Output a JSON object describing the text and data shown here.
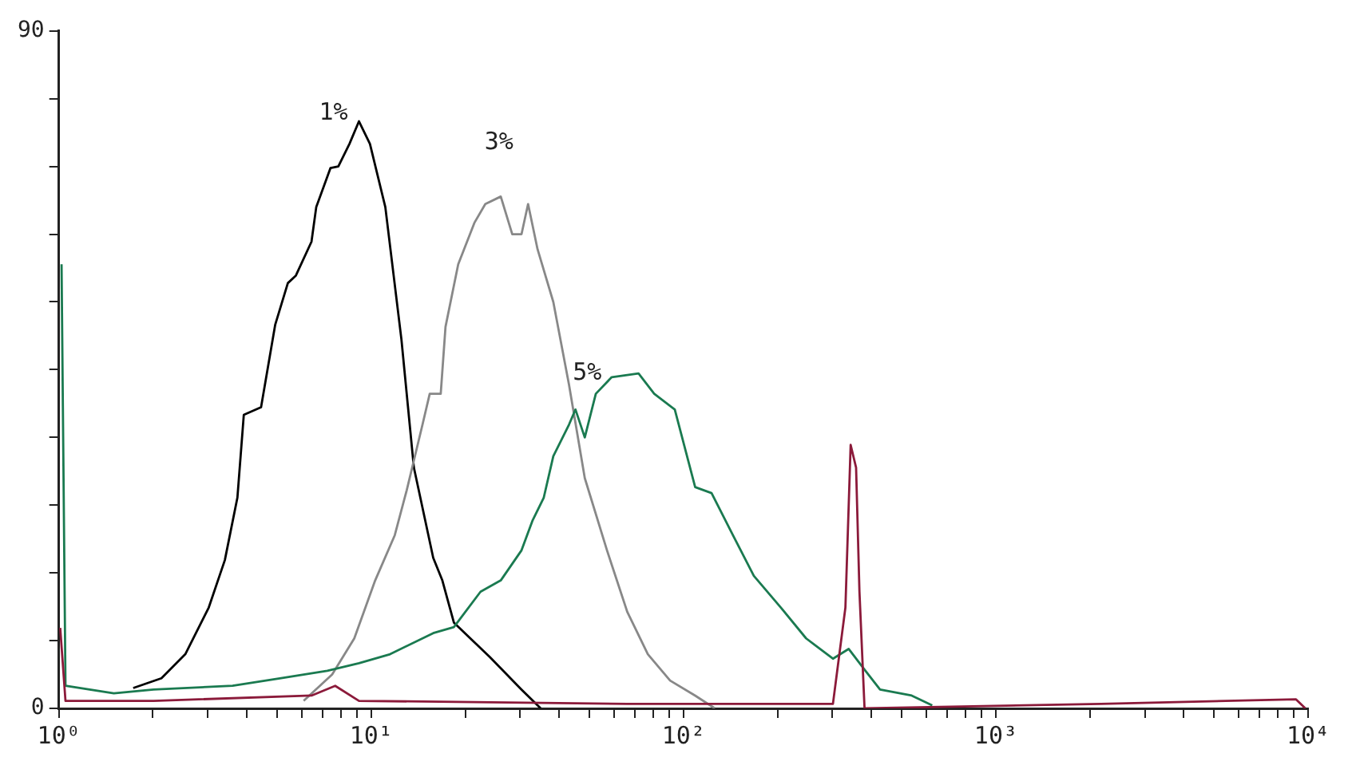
{
  "chart_data": {
    "type": "line",
    "xlim": [
      1,
      10000
    ],
    "ylim": [
      0,
      90
    ],
    "log": "x",
    "legend": false,
    "grid": false,
    "marker": "none",
    "xticks": [
      {
        "value": 1,
        "label": "10⁰"
      },
      {
        "value": 2,
        "label": null
      },
      {
        "value": 3,
        "label": null
      },
      {
        "value": 4,
        "label": null
      },
      {
        "value": 5,
        "label": null
      },
      {
        "value": 6,
        "label": null
      },
      {
        "value": 7,
        "label": null
      },
      {
        "value": 8,
        "label": null
      },
      {
        "value": 9,
        "label": null
      },
      {
        "value": 10,
        "label": "10¹"
      },
      {
        "value": 20,
        "label": null
      },
      {
        "value": 30,
        "label": null
      },
      {
        "value": 40,
        "label": null
      },
      {
        "value": 50,
        "label": null
      },
      {
        "value": 60,
        "label": null
      },
      {
        "value": 70,
        "label": null
      },
      {
        "value": 80,
        "label": null
      },
      {
        "value": 90,
        "label": null
      },
      {
        "value": 100,
        "label": "10²"
      },
      {
        "value": 200,
        "label": null
      },
      {
        "value": 300,
        "label": null
      },
      {
        "value": 400,
        "label": null
      },
      {
        "value": 500,
        "label": null
      },
      {
        "value": 600,
        "label": null
      },
      {
        "value": 700,
        "label": null
      },
      {
        "value": 800,
        "label": null
      },
      {
        "value": 900,
        "label": null
      },
      {
        "value": 1000,
        "label": "10³"
      },
      {
        "value": 2000,
        "label": null
      },
      {
        "value": 3000,
        "label": null
      },
      {
        "value": 4000,
        "label": null
      },
      {
        "value": 5000,
        "label": null
      },
      {
        "value": 6000,
        "label": null
      },
      {
        "value": 7000,
        "label": null
      },
      {
        "value": 8000,
        "label": null
      },
      {
        "value": 9000,
        "label": null
      },
      {
        "value": 10000,
        "label": "10⁴"
      }
    ],
    "yticks": [
      0,
      {
        "value": 9,
        "label": null
      },
      {
        "value": 18,
        "label": null
      },
      {
        "value": 27,
        "label": null
      },
      {
        "value": 36,
        "label": null
      },
      {
        "value": 45,
        "label": null
      },
      {
        "value": 54,
        "label": null
      },
      {
        "value": 63,
        "label": null
      },
      {
        "value": 72,
        "label": null
      },
      {
        "value": 81,
        "label": null
      },
      90
    ],
    "series": [
      {
        "color": "#8b1a3a",
        "x": [
          1.01,
          1.05,
          2.01,
          6.44,
          7.67,
          9.14,
          66.1,
          301,
          330,
          343,
          357,
          366,
          380,
          2170,
          9150,
          9800
        ],
        "values": [
          10.7,
          1,
          1,
          1.7,
          3,
          1,
          0.6,
          0.6,
          13.4,
          35,
          32,
          15.5,
          0,
          0.6,
          1.2,
          0
        ]
      },
      {
        "name": "5%",
        "color": "#1a7a50",
        "x": [
          1.02,
          1.05,
          1.5,
          2.01,
          3.6,
          5.1,
          7.24,
          9.14,
          11.5,
          15.8,
          18.4,
          22.4,
          26,
          30.3,
          32.9,
          35.7,
          38.3,
          43,
          45.1,
          48.3,
          52.4,
          58.9,
          71.8,
          80.6,
          93.8,
          109,
          123,
          144,
          168,
          205,
          247,
          301,
          338,
          379,
          426,
          538,
          626
        ],
        "values": [
          59,
          3,
          2,
          2.5,
          3,
          4,
          5,
          6,
          7.2,
          10,
          10.8,
          15.5,
          17,
          21,
          25,
          28,
          33.5,
          37.7,
          39.7,
          36,
          41.8,
          44,
          44.5,
          41.8,
          39.7,
          29.4,
          28.6,
          23,
          17.6,
          13.4,
          9.3,
          6.6,
          7.9,
          5.2,
          2.5,
          1.7,
          0.4
        ]
      },
      {
        "name": "3%",
        "color": "#888888",
        "x": [
          6.08,
          7.5,
          8.83,
          10.3,
          11.9,
          13,
          14.6,
          15.4,
          16.7,
          17.3,
          19,
          21.4,
          23.2,
          26,
          28.3,
          30.3,
          31.8,
          34.1,
          38.3,
          43,
          48.3,
          56.9,
          66.1,
          76.9,
          90.6,
          109,
          126
        ],
        "values": [
          1,
          4.5,
          9.3,
          17,
          23,
          29,
          37.7,
          41.8,
          41.8,
          50.7,
          59,
          64.5,
          67,
          68,
          63,
          63,
          67,
          61,
          54,
          43,
          30.6,
          21,
          12.8,
          7.2,
          3.7,
          1.7,
          0
        ]
      },
      {
        "name": "1%",
        "color": "#000000",
        "x": [
          1.73,
          2.13,
          2.54,
          3.02,
          3.4,
          3.73,
          3.91,
          4.44,
          4.93,
          5.41,
          5.74,
          6.44,
          6.67,
          7.41,
          7.85,
          8.52,
          9.14,
          9.91,
          11.1,
          12.5,
          13.7,
          15.8,
          16.9,
          18.4,
          24,
          30.3,
          34.9
        ],
        "values": [
          2.7,
          4,
          7.2,
          13.4,
          19.7,
          28,
          39,
          40,
          51,
          56.5,
          57.5,
          62,
          66.6,
          71.8,
          72,
          75,
          78,
          75,
          66.6,
          49,
          32,
          20,
          17,
          11.4,
          6.8,
          2.5,
          0
        ]
      }
    ]
  }
}
